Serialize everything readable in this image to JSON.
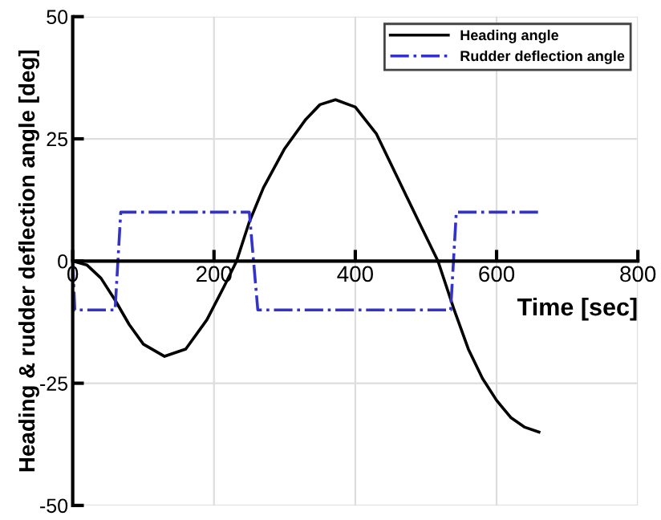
{
  "chart_data": {
    "type": "line",
    "xlabel": "Time [sec]",
    "ylabel": "Heading & rudder deflection angle [deg]",
    "xlim": [
      0,
      800
    ],
    "ylim": [
      -50,
      50
    ],
    "xticks": [
      0,
      200,
      400,
      600,
      800
    ],
    "yticks": [
      -50,
      -25,
      0,
      25,
      50
    ],
    "grid": true,
    "legend": "top right",
    "series": [
      {
        "name": "Heading angle",
        "color": "#000000",
        "line_style": "solid",
        "x": [
          0,
          20,
          40,
          60,
          80,
          100,
          130,
          160,
          190,
          215,
          232,
          250,
          270,
          300,
          330,
          350,
          372,
          400,
          430,
          460,
          490,
          517,
          540,
          560,
          580,
          600,
          620,
          640,
          660
        ],
        "values": [
          0,
          -0.8,
          -3.5,
          -8,
          -13,
          -17,
          -19.5,
          -18,
          -12,
          -5,
          0,
          8,
          15,
          23,
          29,
          32,
          33,
          31.5,
          26,
          17,
          8,
          0,
          -10,
          -18,
          -24,
          -28.5,
          -32,
          -34,
          -35
        ]
      },
      {
        "name": "Rudder deflection angle",
        "color": "#3333cc",
        "line_style": "dashdot",
        "x": [
          0,
          3,
          60,
          68,
          250,
          262,
          535,
          543,
          660
        ],
        "values": [
          0,
          -10,
          -10,
          10,
          10,
          -10,
          -10,
          10,
          10
        ]
      }
    ]
  }
}
